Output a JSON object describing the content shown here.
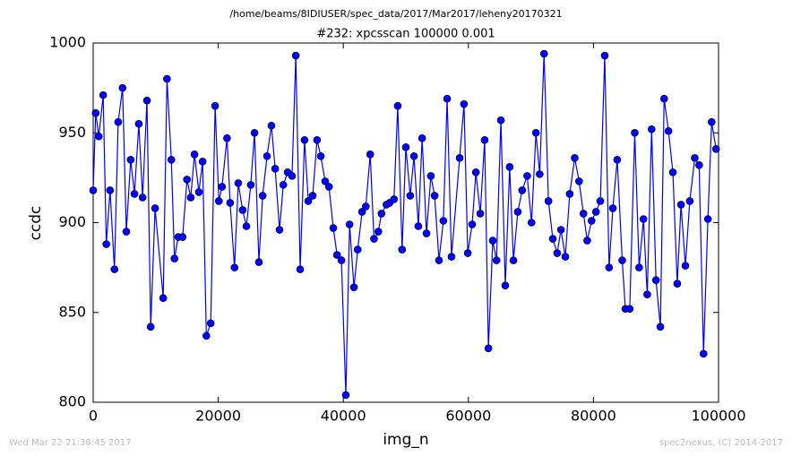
{
  "chart_data": {
    "type": "line",
    "suptitle": "/home/beams/8IDIUSER/spec_data/2017/Mar2017/leheny20170321",
    "title": "#232: xpcsscan 100000 0.001",
    "xlabel": "img_n",
    "ylabel": "ccdc",
    "footer_left": "Wed Mar 22 21:38:45 2017",
    "footer_right": "spec2nexus, (C) 2014-2017",
    "xlim": [
      0,
      100000
    ],
    "xticks": [
      0,
      20000,
      40000,
      60000,
      80000,
      100000
    ],
    "ylim": [
      800,
      1000
    ],
    "yticks": [
      800,
      850,
      900,
      950,
      1000
    ],
    "x": [
      0,
      400,
      900,
      1600,
      2100,
      2700,
      3400,
      4000,
      4700,
      5300,
      6000,
      6600,
      7300,
      7900,
      8600,
      9200,
      9900,
      11200,
      11800,
      12500,
      13000,
      13600,
      14300,
      15000,
      15600,
      16200,
      16900,
      17500,
      18100,
      18800,
      19500,
      20100,
      20600,
      21400,
      21900,
      22600,
      23200,
      23900,
      24500,
      25200,
      25800,
      26500,
      27100,
      27800,
      28500,
      29100,
      29800,
      30400,
      31100,
      31800,
      32400,
      33100,
      33800,
      34400,
      35100,
      35800,
      36400,
      37100,
      37700,
      38400,
      39000,
      39700,
      40400,
      41000,
      41700,
      42300,
      43000,
      43600,
      44300,
      44900,
      45600,
      46100,
      46900,
      47400,
      48100,
      48700,
      49400,
      50000,
      50700,
      51300,
      52000,
      52600,
      53300,
      54000,
      54600,
      55300,
      56000,
      56600,
      57300,
      58600,
      59300,
      59900,
      60600,
      61200,
      61900,
      62600,
      63200,
      63900,
      64500,
      65200,
      65900,
      66600,
      67200,
      67900,
      68600,
      69400,
      70100,
      70800,
      71400,
      72100,
      72800,
      73500,
      74200,
      74800,
      75500,
      76200,
      77000,
      77700,
      78400,
      79000,
      79700,
      80400,
      81100,
      81800,
      82500,
      83100,
      83800,
      84600,
      85100,
      85800,
      86600,
      87300,
      88000,
      88600,
      89300,
      90000,
      90700,
      91300,
      92000,
      92700,
      93400,
      94000,
      94700,
      95400,
      96200,
      96900,
      97600,
      98300,
      98900,
      99600
    ],
    "series": [
      {
        "name": "ccdc",
        "color": "#0000ff",
        "values": [
          918,
          961,
          948,
          971,
          888,
          918,
          874,
          956,
          975,
          895,
          935,
          916,
          955,
          914,
          968,
          842,
          908,
          858,
          980,
          935,
          880,
          892,
          892,
          924,
          914,
          938,
          917,
          934,
          837,
          844,
          965,
          912,
          920,
          947,
          911,
          875,
          922,
          907,
          898,
          921,
          950,
          878,
          915,
          937,
          954,
          930,
          896,
          921,
          928,
          926,
          993,
          874,
          946,
          912,
          915,
          946,
          937,
          923,
          920,
          897,
          882,
          879,
          804,
          899,
          864,
          885,
          906,
          909,
          938,
          891,
          895,
          905,
          910,
          911,
          913,
          965,
          885,
          942,
          915,
          937,
          898,
          947,
          894,
          926,
          915,
          879,
          901,
          969,
          881,
          936,
          966,
          883,
          899,
          928,
          905,
          946,
          830,
          890,
          879,
          957,
          865,
          931,
          879,
          906,
          918,
          926,
          900,
          950,
          927,
          994,
          912,
          891,
          883,
          896,
          881,
          916,
          936,
          923,
          905,
          890,
          901,
          906,
          912,
          993,
          875,
          908,
          935,
          879,
          852,
          852,
          950,
          875,
          902,
          860,
          952,
          868,
          842,
          969,
          951,
          928,
          866,
          910,
          876,
          912,
          936,
          932,
          827,
          902,
          956,
          941
        ]
      }
    ]
  }
}
